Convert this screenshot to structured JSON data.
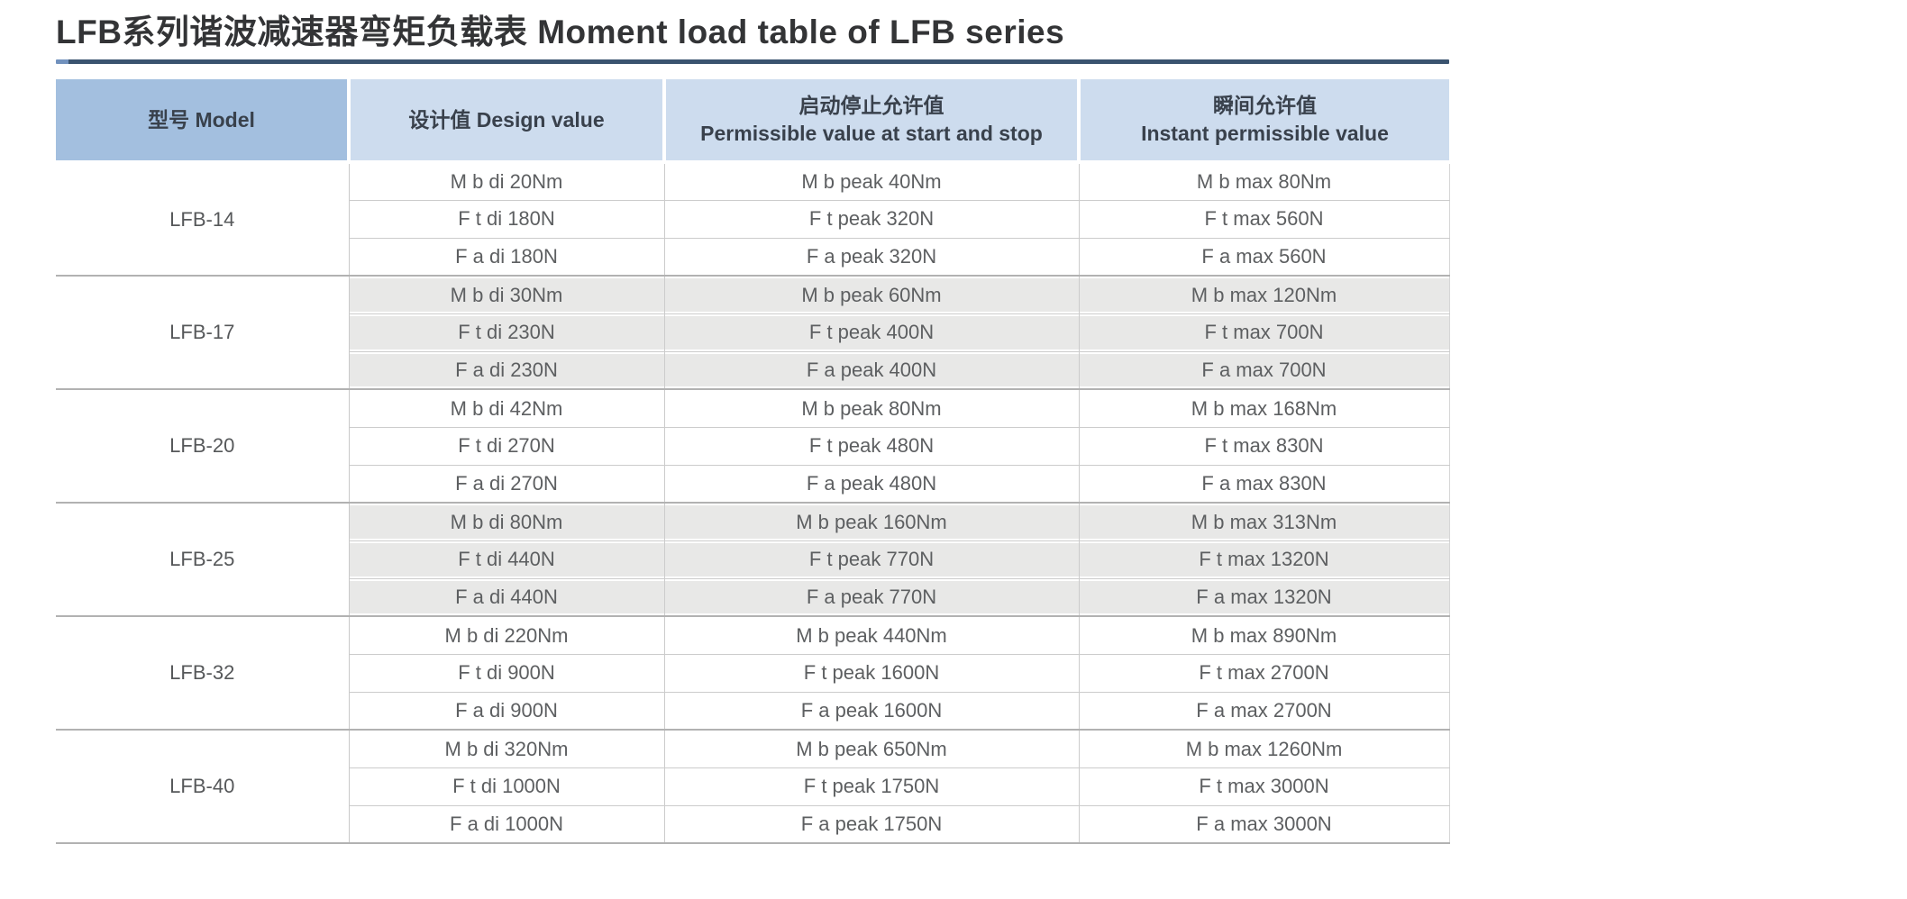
{
  "page": {
    "title": "LFB系列谐波减速器弯矩负载表 Moment load table of LFB series"
  },
  "colors": {
    "title_rule_dark": "#3a536f",
    "title_rule_light": "#7191bd",
    "header_model_bg": "#a3bfdf",
    "header_bg": "#cddcee",
    "shaded_row_bg": "#e8e8e7",
    "grid_line": "#cccccc",
    "group_separator": "#b2b2b2",
    "header_text": "#39414c",
    "body_text": "#5d5f61"
  },
  "table": {
    "headers": [
      {
        "line1": "型号 Model",
        "line2": ""
      },
      {
        "line1": "设计值 Design value",
        "line2": ""
      },
      {
        "line1": "启动停止允许值",
        "line2": "Permissible value at start and stop"
      },
      {
        "line1": "瞬间允许值",
        "line2": "Instant permissible value"
      }
    ],
    "groups": [
      {
        "model": "LFB-14",
        "shaded": false,
        "rows": [
          [
            "M b di 20Nm",
            "M b peak 40Nm",
            "M b max 80Nm"
          ],
          [
            "F t di 180N",
            "F t peak 320N",
            "F t max 560N"
          ],
          [
            "F a di 180N",
            "F a peak 320N",
            "F a max 560N"
          ]
        ]
      },
      {
        "model": "LFB-17",
        "shaded": true,
        "rows": [
          [
            "M b di 30Nm",
            "M b peak 60Nm",
            "M b max 120Nm"
          ],
          [
            "F t di 230N",
            "F t peak 400N",
            "F t max 700N"
          ],
          [
            "F a di 230N",
            "F a peak 400N",
            "F a max 700N"
          ]
        ]
      },
      {
        "model": "LFB-20",
        "shaded": false,
        "rows": [
          [
            "M b di 42Nm",
            "M b peak 80Nm",
            "M b max 168Nm"
          ],
          [
            "F t di 270N",
            "F t peak 480N",
            "F t max 830N"
          ],
          [
            "F a di 270N",
            "F a peak 480N",
            "F a max 830N"
          ]
        ]
      },
      {
        "model": "LFB-25",
        "shaded": true,
        "rows": [
          [
            "M b di 80Nm",
            "M b peak 160Nm",
            "M b max 313Nm"
          ],
          [
            "F t di 440N",
            "F t peak 770N",
            "F t max 1320N"
          ],
          [
            "F a di 440N",
            "F a peak 770N",
            "F a max 1320N"
          ]
        ]
      },
      {
        "model": "LFB-32",
        "shaded": false,
        "rows": [
          [
            "M b di 220Nm",
            "M b peak 440Nm",
            "M b max 890Nm"
          ],
          [
            "F t di 900N",
            "F t peak 1600N",
            "F t max 2700N"
          ],
          [
            "F a di 900N",
            "F a peak 1600N",
            "F a max 2700N"
          ]
        ]
      },
      {
        "model": "LFB-40",
        "shaded": false,
        "rows": [
          [
            "M b di 320Nm",
            "M b peak 650Nm",
            "M b max 1260Nm"
          ],
          [
            "F t di 1000N",
            "F t peak 1750N",
            "F t max 3000N"
          ],
          [
            "F a di 1000N",
            "F a peak 1750N",
            "F a max 3000N"
          ]
        ]
      }
    ]
  }
}
